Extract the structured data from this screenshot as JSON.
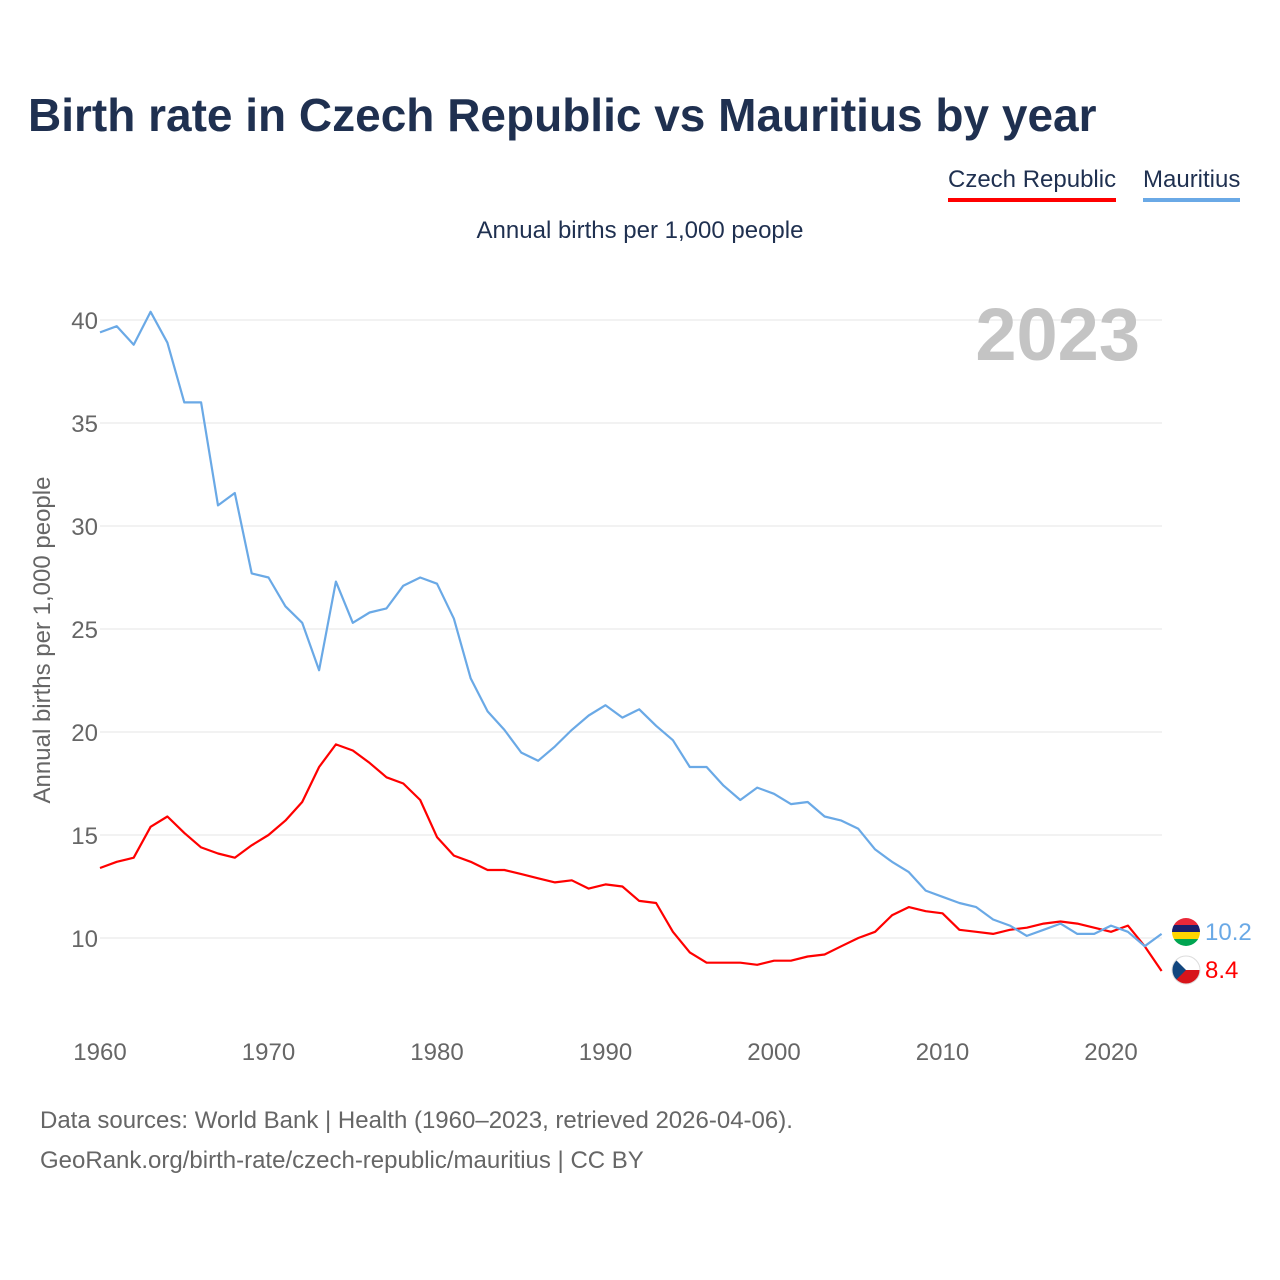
{
  "header": {
    "title": "Birth rate in Czech Republic vs Mauritius by year",
    "subtitle": "Annual births per 1,000 people"
  },
  "legend": [
    {
      "name": "Czech Republic",
      "color": "#ff0000"
    },
    {
      "name": "Mauritius",
      "color": "#6aa9e6"
    }
  ],
  "footer": {
    "source_line": "Data sources: World Bank | Health (1960–2023, retrieved 2026-04-06).",
    "url_line": "GeoRank.org/birth-rate/czech-republic/mauritius | CC BY"
  },
  "chart_data": {
    "type": "line",
    "title": "Birth rate in Czech Republic vs Mauritius by year",
    "subtitle": "Annual births per 1,000 people",
    "xlabel": "",
    "ylabel": "Annual births per 1,000 people",
    "year_watermark": "2023",
    "xlim": [
      1960,
      2024
    ],
    "ylim": [
      6.5,
      41
    ],
    "xticks": [
      1960,
      1970,
      1980,
      1990,
      2000,
      2010,
      2020
    ],
    "yticks": [
      10,
      15,
      20,
      25,
      30,
      35,
      40
    ],
    "grid": true,
    "legend_position": "top-right",
    "x": [
      1960,
      1961,
      1962,
      1963,
      1964,
      1965,
      1966,
      1967,
      1968,
      1969,
      1970,
      1971,
      1972,
      1973,
      1974,
      1975,
      1976,
      1977,
      1978,
      1979,
      1980,
      1981,
      1982,
      1983,
      1984,
      1985,
      1986,
      1987,
      1988,
      1989,
      1990,
      1991,
      1992,
      1993,
      1994,
      1995,
      1996,
      1997,
      1998,
      1999,
      2000,
      2001,
      2002,
      2003,
      2004,
      2005,
      2006,
      2007,
      2008,
      2009,
      2010,
      2011,
      2012,
      2013,
      2014,
      2015,
      2016,
      2017,
      2018,
      2019,
      2020,
      2021,
      2022,
      2023
    ],
    "series": [
      {
        "name": "Czech Republic",
        "color": "#ff0000",
        "end_label": "8.4",
        "flag": "czech-republic-flag-icon",
        "values": [
          13.4,
          13.7,
          13.9,
          15.4,
          15.9,
          15.1,
          14.4,
          14.1,
          13.9,
          14.5,
          15.0,
          15.7,
          16.6,
          18.3,
          19.4,
          19.1,
          18.5,
          17.8,
          17.5,
          16.7,
          14.9,
          14.0,
          13.7,
          13.3,
          13.3,
          13.1,
          12.9,
          12.7,
          12.8,
          12.4,
          12.6,
          12.5,
          11.8,
          11.7,
          10.3,
          9.3,
          8.8,
          8.8,
          8.8,
          8.7,
          8.9,
          8.9,
          9.1,
          9.2,
          9.6,
          10.0,
          10.3,
          11.1,
          11.5,
          11.3,
          11.2,
          10.4,
          10.3,
          10.2,
          10.4,
          10.5,
          10.7,
          10.8,
          10.7,
          10.5,
          10.3,
          10.6,
          9.6,
          8.4
        ]
      },
      {
        "name": "Mauritius",
        "color": "#6aa9e6",
        "end_label": "10.2",
        "flag": "mauritius-flag-icon",
        "values": [
          39.4,
          39.7,
          38.8,
          40.4,
          38.9,
          36.0,
          36.0,
          31.0,
          31.6,
          27.7,
          27.5,
          26.1,
          25.3,
          23.0,
          27.3,
          25.3,
          25.8,
          26.0,
          27.1,
          27.5,
          27.2,
          25.5,
          22.6,
          21.0,
          20.1,
          19.0,
          18.6,
          19.3,
          20.1,
          20.8,
          21.3,
          20.7,
          21.1,
          20.3,
          19.6,
          18.3,
          18.3,
          17.4,
          16.7,
          17.3,
          17.0,
          16.5,
          16.6,
          15.9,
          15.7,
          15.3,
          14.3,
          13.7,
          13.2,
          12.3,
          12.0,
          11.7,
          11.5,
          10.9,
          10.6,
          10.1,
          10.4,
          10.7,
          10.2,
          10.2,
          10.6,
          10.3,
          9.6,
          10.2
        ]
      }
    ]
  }
}
